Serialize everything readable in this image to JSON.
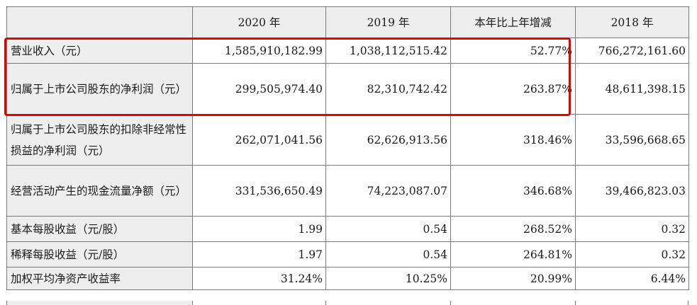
{
  "table": {
    "headers": [
      "",
      "2020 年",
      "2019 年",
      "本年比上年增减",
      "2018 年"
    ],
    "rows": [
      {
        "label": "营业收入（元）",
        "v2020": "1,585,910,182.99",
        "v2019": "1,038,112,515.42",
        "change": "52.77%",
        "v2018": "766,272,161.60"
      },
      {
        "label": "归属于上市公司股东的净利润（元）",
        "v2020": "299,505,974.40",
        "v2019": "82,310,742.42",
        "change": "263.87%",
        "v2018": "48,611,398.15"
      },
      {
        "label": "归属于上市公司股东的扣除非经常性损益的净利润（元）",
        "v2020": "262,071,041.56",
        "v2019": "62,626,913.56",
        "change": "318.46%",
        "v2018": "33,596,668.65"
      },
      {
        "label": "经营活动产生的现金流量净额（元）",
        "v2020": "331,536,650.49",
        "v2019": "74,223,087.07",
        "change": "346.68%",
        "v2018": "39,466,823.03"
      },
      {
        "label": "基本每股收益（元/股）",
        "v2020": "1.99",
        "v2019": "0.54",
        "change": "268.52%",
        "v2018": "0.32"
      },
      {
        "label": "稀释每股收益（元/股）",
        "v2020": "1.97",
        "v2019": "0.54",
        "change": "264.81%",
        "v2018": "0.32"
      },
      {
        "label": "加权平均净资产收益率",
        "v2020": "31.24%",
        "v2019": "10.25%",
        "change": "20.99%",
        "v2018": "6.44%"
      }
    ]
  },
  "highlight": {
    "color": "#e60000",
    "rows": [
      0,
      1
    ]
  }
}
